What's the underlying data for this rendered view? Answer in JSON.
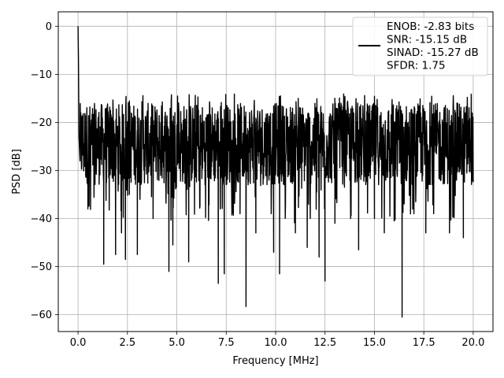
{
  "chart_data": {
    "type": "line",
    "title": "",
    "xlabel": "Frequency [MHz]",
    "ylabel": "PSD [dB]",
    "xlim": [
      -1.0,
      21.0
    ],
    "ylim": [
      -63.5,
      3.0
    ],
    "xticks": [
      0.0,
      2.5,
      5.0,
      7.5,
      10.0,
      12.5,
      15.0,
      17.5,
      20.0
    ],
    "xtick_labels": [
      "0.0",
      "2.5",
      "5.0",
      "7.5",
      "10.0",
      "12.5",
      "15.0",
      "17.5",
      "20.0"
    ],
    "yticks": [
      0,
      -10,
      -20,
      -30,
      -40,
      -50,
      -60
    ],
    "ytick_labels": [
      "0",
      "−10",
      "−20",
      "−30",
      "−40",
      "−50",
      "−60"
    ],
    "grid": true,
    "legend_position": "top-right",
    "series": [
      {
        "name": "ENOB: -2.83 bits\nSNR: -15.15 dB\nSINAD: -15.27 dB\nSFDR: 1.75",
        "color": "#000000",
        "noise_band_db": [
          -33,
          -16
        ],
        "x": [
          0.0,
          0.02,
          0.05,
          0.1,
          0.2,
          0.5,
          0.8,
          1.3,
          1.9,
          2.2,
          2.4,
          2.6,
          3.0,
          3.8,
          4.6,
          4.8,
          5.6,
          7.1,
          7.2,
          7.4,
          8.2,
          8.5,
          9.0,
          9.9,
          10.2,
          11.0,
          11.6,
          12.2,
          12.5,
          13.0,
          13.8,
          14.2,
          15.0,
          15.5,
          16.0,
          16.4,
          17.0,
          17.6,
          18.0,
          18.8,
          19.5,
          20.0
        ],
        "y": [
          0.0,
          -6.5,
          -23.0,
          -28.0,
          -19.0,
          -38.0,
          -31.0,
          -49.5,
          -47.5,
          -43.0,
          -48.5,
          -35.0,
          -47.5,
          -40.0,
          -51.0,
          -45.5,
          -49.0,
          -53.5,
          -38.0,
          -51.5,
          -39.0,
          -58.3,
          -43.0,
          -47.0,
          -51.5,
          -43.0,
          -46.0,
          -48.0,
          -53.0,
          -41.0,
          -40.0,
          -46.5,
          -40.0,
          -43.0,
          -40.5,
          -60.5,
          -39.0,
          -43.0,
          -39.0,
          -43.0,
          -44.0,
          -32.0
        ]
      }
    ]
  }
}
